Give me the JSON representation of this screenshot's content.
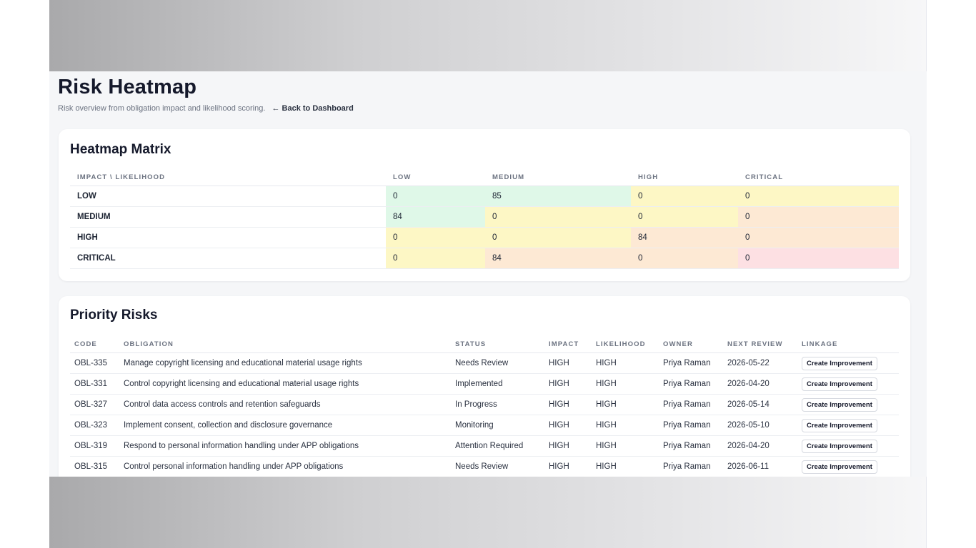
{
  "header": {
    "title": "Risk Heatmap",
    "subtitle": "Risk overview from obligation impact and likelihood scoring.",
    "back_link": "← Back to Dashboard"
  },
  "matrix": {
    "title": "Heatmap Matrix",
    "columns": [
      "IMPACT \\ LIKELIHOOD",
      "LOW",
      "MEDIUM",
      "HIGH",
      "CRITICAL"
    ],
    "rows": [
      {
        "label": "LOW",
        "values": [
          "0",
          "85",
          "0",
          "0"
        ],
        "colors": [
          "#dff8e8",
          "#dff8e8",
          "#fdf7c5",
          "#fdf7c5"
        ]
      },
      {
        "label": "MEDIUM",
        "values": [
          "84",
          "0",
          "0",
          "0"
        ],
        "colors": [
          "#dff8e8",
          "#fdf7c5",
          "#fdf7c5",
          "#fde9d4"
        ]
      },
      {
        "label": "HIGH",
        "values": [
          "0",
          "0",
          "84",
          "0"
        ],
        "colors": [
          "#fdf7c5",
          "#fdf7c5",
          "#fde9d4",
          "#fde9d4"
        ]
      },
      {
        "label": "CRITICAL",
        "values": [
          "0",
          "84",
          "0",
          "0"
        ],
        "colors": [
          "#fdf7c5",
          "#fde9d4",
          "#fde9d4",
          "#fde0e3"
        ]
      }
    ]
  },
  "priority": {
    "title": "Priority Risks",
    "columns": [
      "CODE",
      "OBLIGATION",
      "STATUS",
      "IMPACT",
      "LIKELIHOOD",
      "OWNER",
      "NEXT REVIEW",
      "LINKAGE"
    ],
    "action_label": "Create Improvement",
    "rows": [
      {
        "code": "OBL-335",
        "obligation": "Manage copyright licensing and educational material usage rights",
        "status": "Needs Review",
        "impact": "HIGH",
        "likelihood": "HIGH",
        "owner": "Priya Raman",
        "next_review": "2026-05-22"
      },
      {
        "code": "OBL-331",
        "obligation": "Control copyright licensing and educational material usage rights",
        "status": "Implemented",
        "impact": "HIGH",
        "likelihood": "HIGH",
        "owner": "Priya Raman",
        "next_review": "2026-04-20"
      },
      {
        "code": "OBL-327",
        "obligation": "Control data access controls and retention safeguards",
        "status": "In Progress",
        "impact": "HIGH",
        "likelihood": "HIGH",
        "owner": "Priya Raman",
        "next_review": "2026-05-14"
      },
      {
        "code": "OBL-323",
        "obligation": "Implement consent, collection and disclosure governance",
        "status": "Monitoring",
        "impact": "HIGH",
        "likelihood": "HIGH",
        "owner": "Priya Raman",
        "next_review": "2026-05-10"
      },
      {
        "code": "OBL-319",
        "obligation": "Respond to personal information handling under APP obligations",
        "status": "Attention Required",
        "impact": "HIGH",
        "likelihood": "HIGH",
        "owner": "Priya Raman",
        "next_review": "2026-04-20"
      },
      {
        "code": "OBL-315",
        "obligation": "Control personal information handling under APP obligations",
        "status": "Needs Review",
        "impact": "HIGH",
        "likelihood": "HIGH",
        "owner": "Priya Raman",
        "next_review": "2026-06-11"
      }
    ]
  }
}
